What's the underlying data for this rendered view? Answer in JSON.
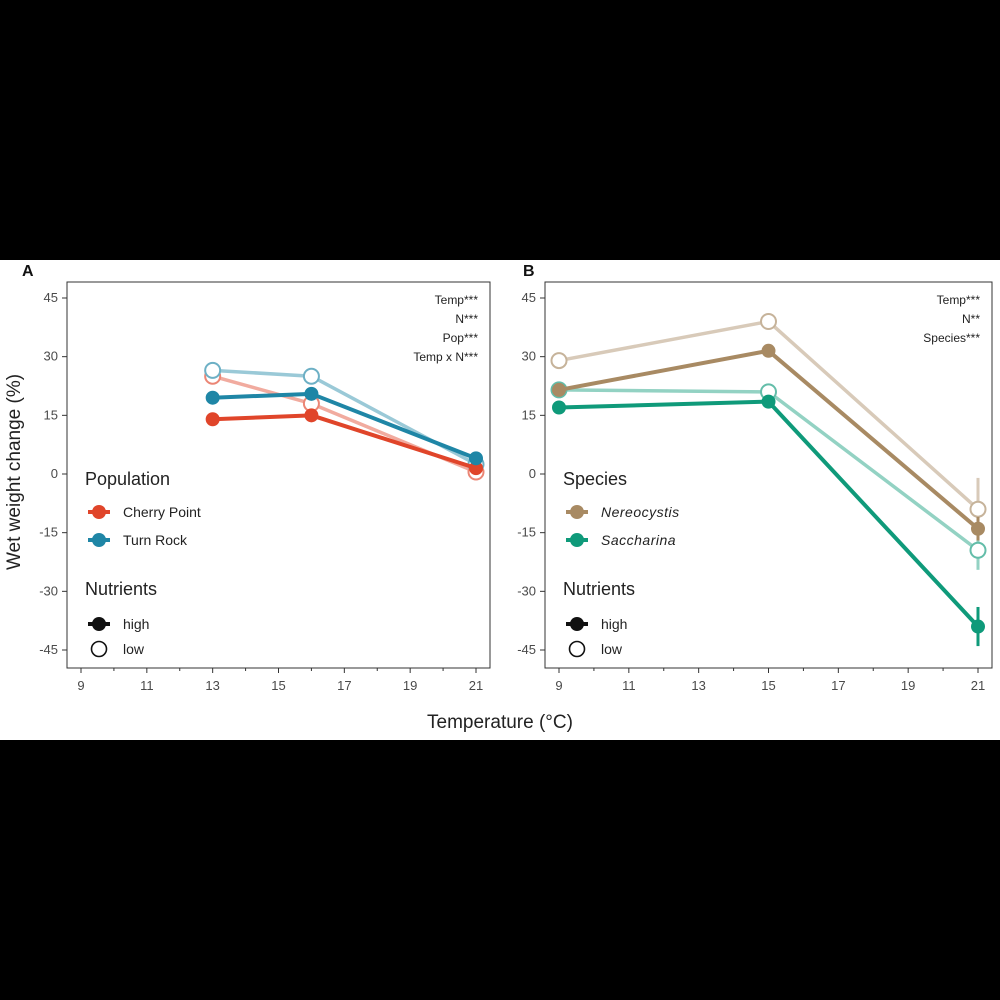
{
  "chart_data": [
    {
      "panel": "A",
      "type": "line",
      "ylabel": "Wet weight change (%)",
      "xlabel": "Temperature (°C)",
      "xlim": [
        9,
        21
      ],
      "ylim": [
        -45,
        45
      ],
      "xticks": [
        "9",
        "11",
        "13",
        "15",
        "17",
        "19",
        "21"
      ],
      "yticks": [
        "45",
        "30",
        "15",
        "0",
        "-15",
        "-30",
        "-45"
      ],
      "stats": [
        "Temp***",
        "N***",
        "Pop***",
        "Temp x N***"
      ],
      "legend_groups": [
        {
          "title": "Population",
          "entries": [
            {
              "label": "Cherry Point",
              "color": "#e0452a"
            },
            {
              "label": "Turn Rock",
              "color": "#1f86a6"
            }
          ]
        },
        {
          "title": "Nutrients",
          "entries": [
            {
              "label": "high",
              "filled": true
            },
            {
              "label": "low",
              "filled": false
            }
          ]
        }
      ],
      "series": [
        {
          "name": "Cherry Point low",
          "color": "#e0452a",
          "filled": false,
          "x": [
            13,
            16,
            21
          ],
          "y": [
            25,
            18,
            0.5
          ]
        },
        {
          "name": "Turn Rock low",
          "color": "#1f86a6",
          "filled": false,
          "x": [
            13,
            16,
            21
          ],
          "y": [
            26.5,
            25,
            2.5
          ]
        },
        {
          "name": "Cherry Point high",
          "color": "#e0452a",
          "filled": true,
          "x": [
            13,
            16,
            21
          ],
          "y": [
            14,
            15,
            1.5
          ]
        },
        {
          "name": "Turn Rock high",
          "color": "#1f86a6",
          "filled": true,
          "x": [
            13,
            16,
            21
          ],
          "y": [
            19.5,
            20.5,
            4
          ]
        }
      ]
    },
    {
      "panel": "B",
      "type": "line",
      "ylabel": "Wet weight change (%)",
      "xlabel": "Temperature (°C)",
      "xlim": [
        9,
        21
      ],
      "ylim": [
        -45,
        45
      ],
      "xticks": [
        "9",
        "11",
        "13",
        "15",
        "17",
        "19",
        "21"
      ],
      "yticks": [
        "45",
        "30",
        "15",
        "0",
        "-15",
        "-30",
        "-45"
      ],
      "stats": [
        "Temp***",
        "N**",
        "Species***"
      ],
      "legend_groups": [
        {
          "title": "Species",
          "entries": [
            {
              "label": "Nereocystis",
              "color": "#a88a63",
              "italic": true
            },
            {
              "label": "Saccharina",
              "color": "#0f9a7a",
              "italic": true
            }
          ]
        },
        {
          "title": "Nutrients",
          "entries": [
            {
              "label": "high",
              "filled": true
            },
            {
              "label": "low",
              "filled": false
            }
          ]
        }
      ],
      "series": [
        {
          "name": "Nereocystis low",
          "color": "#a88a63",
          "filled": false,
          "x": [
            9,
            15,
            21
          ],
          "y": [
            29,
            39,
            -9
          ],
          "err": [
            0,
            0,
            8
          ]
        },
        {
          "name": "Saccharina low",
          "color": "#0f9a7a",
          "filled": false,
          "x": [
            9,
            15,
            21
          ],
          "y": [
            21.5,
            21,
            -19.5
          ],
          "err": [
            0,
            0,
            5
          ]
        },
        {
          "name": "Nereocystis high",
          "color": "#a88a63",
          "filled": true,
          "x": [
            9,
            15,
            21
          ],
          "y": [
            21.5,
            31.5,
            -14
          ],
          "err": [
            0,
            0,
            3
          ]
        },
        {
          "name": "Saccharina high",
          "color": "#0f9a7a",
          "filled": true,
          "x": [
            9,
            15,
            21
          ],
          "y": [
            17,
            18.5,
            -39
          ],
          "err": [
            0,
            0,
            5
          ]
        }
      ]
    }
  ],
  "colors": {
    "background": "#000000",
    "panel": "#ffffff",
    "axis": "#222222"
  }
}
